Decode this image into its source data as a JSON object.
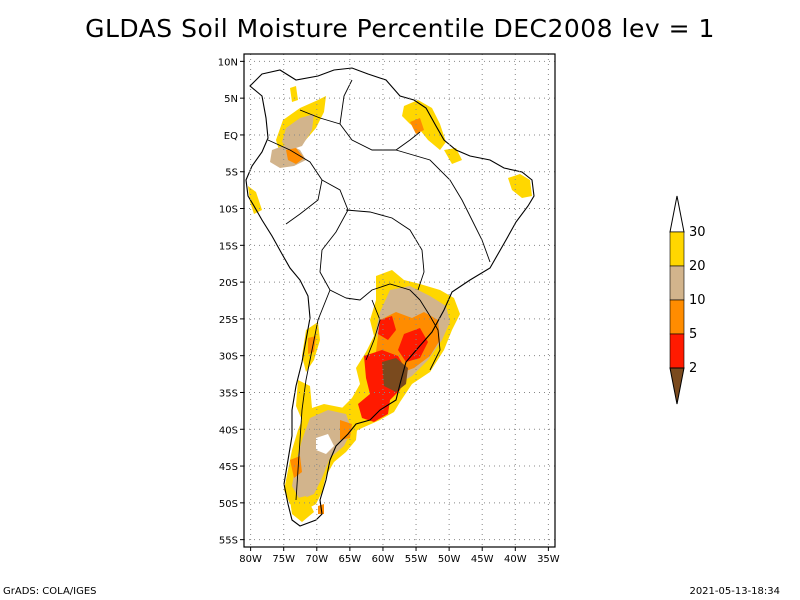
{
  "title": "GLDAS Soil Moisture Percentile DEC2008 lev = 1",
  "map": {
    "lat_ticks": [
      "10N",
      "5N",
      "EQ",
      "5S",
      "10S",
      "15S",
      "20S",
      "25S",
      "30S",
      "35S",
      "40S",
      "45S",
      "50S",
      "55S"
    ],
    "lon_ticks": [
      "80W",
      "75W",
      "70W",
      "65W",
      "60W",
      "55W",
      "50W",
      "45W",
      "40W",
      "35W"
    ],
    "lat_range": [
      -56,
      11
    ],
    "lon_range": [
      -81,
      -34
    ],
    "grid": "dotted"
  },
  "colorbar": {
    "levels": [
      {
        "label": "2",
        "color": "#7a4a1e"
      },
      {
        "label": "5",
        "color": "#ff1a00"
      },
      {
        "label": "10",
        "color": "#ff8c00"
      },
      {
        "label": "20",
        "color": "#d2b48c"
      },
      {
        "label": "30",
        "color": "#ffd700"
      }
    ],
    "below_color": "#7a4a1e",
    "above_color": "#ffffff",
    "interval_colors": [
      "#ff1a00",
      "#ff8c00",
      "#d2b48c",
      "#ffd700"
    ]
  },
  "footer": {
    "left": "GrADS: COLA/IGES",
    "right": "2021-05-13-18:34"
  }
}
